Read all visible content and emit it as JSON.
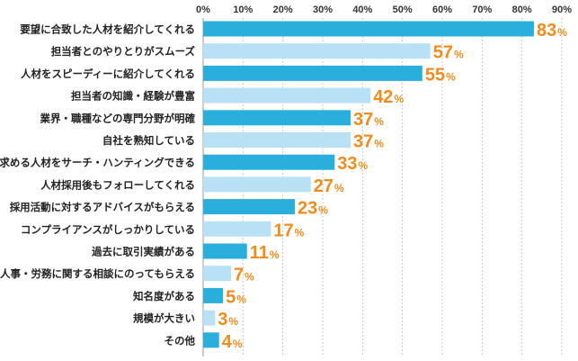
{
  "chart_data": {
    "type": "bar",
    "orientation": "horizontal",
    "title": "",
    "xlabel": "",
    "ylabel": "",
    "xlim": [
      0,
      90
    ],
    "tick_labels": [
      "0%",
      "10%",
      "20%",
      "30%",
      "40%",
      "50%",
      "60%",
      "70%",
      "80%",
      "90%"
    ],
    "grid": true,
    "value_suffix": "%",
    "categories": [
      "要望に合致した人材を紹介してくれる",
      "担当者とのやりとりがスムーズ",
      "人材をスピーディーに紹介してくれる",
      "担当者の知識・経験が豊富",
      "業界・職種などの専門分野が明確",
      "自社を熟知している",
      "求める人材をサーチ・ハンティングできる",
      "人材採用後もフォローしてくれる",
      "採用活動に対するアドバイスがもらえる",
      "コンプライアンスがしっかりしている",
      "過去に取引実績がある",
      "人事・労務に関する相談にのってもらえる",
      "知名度がある",
      "規模が大きい",
      "その他"
    ],
    "values": [
      83,
      57,
      55,
      42,
      37,
      37,
      33,
      27,
      23,
      17,
      11,
      7,
      5,
      3,
      4
    ],
    "bar_colors": [
      "#2aaedb",
      "#b9e1f5",
      "#2aaedb",
      "#b9e1f5",
      "#2aaedb",
      "#b9e1f5",
      "#2aaedb",
      "#b9e1f5",
      "#2aaedb",
      "#b9e1f5",
      "#2aaedb",
      "#b9e1f5",
      "#2aaedb",
      "#b9e1f5",
      "#2aaedb"
    ],
    "label_color": "#f08c1e"
  }
}
